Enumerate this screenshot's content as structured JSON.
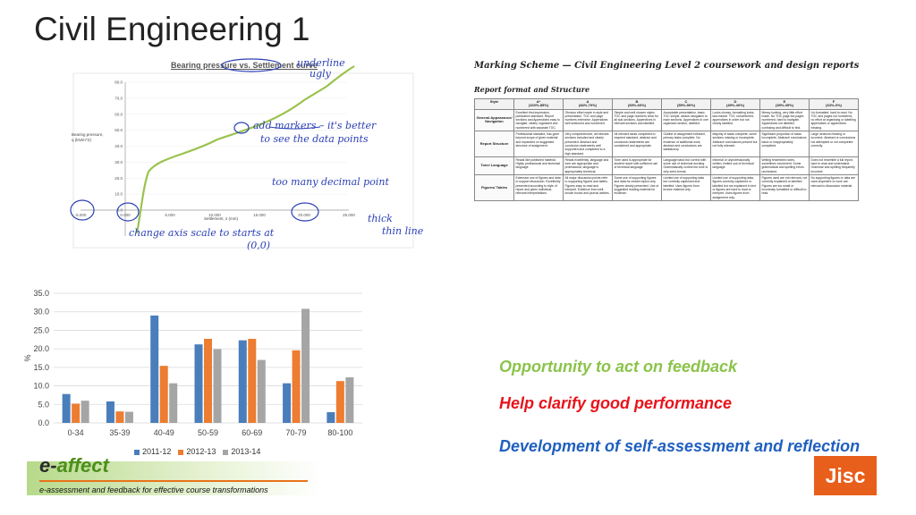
{
  "slide": {
    "title": "Civil Engineering 1"
  },
  "line_chart": {
    "title": "Bearing pressure vs. Settlement curve",
    "ylabel_1": "Bearing pressure,",
    "ylabel_2": "q (kN/m^2)",
    "xlabel": "Settlement, s (mm)",
    "y_ticks": [
      "80.0",
      "70.0",
      "60.0",
      "50.0",
      "40.0",
      "30.0",
      "20.0",
      "10.0",
      "0.0"
    ],
    "x_ticks": [
      "-5.000",
      "0.000",
      "5.000",
      "10.000",
      "15.000",
      "20.000",
      "25.000"
    ],
    "annotations": {
      "underline_1": "underline",
      "underline_2": "ugly",
      "marker_1": "add markers – it's better",
      "marker_2": "to see the data points",
      "decimal": "too many decimal point",
      "thick_1": "thick",
      "thick_2": "thin line",
      "scale_1": "change axis scale to starts at",
      "scale_2": "(0,0)"
    }
  },
  "chart_data": {
    "type": "bar",
    "categories": [
      "0-34",
      "35-39",
      "40-49",
      "50-59",
      "60-69",
      "70-79",
      "80-100"
    ],
    "series": [
      {
        "name": "2011-12",
        "values": [
          7.8,
          5.8,
          29.0,
          21.2,
          22.3,
          10.7,
          2.9
        ],
        "color": "#4a7ebb"
      },
      {
        "name": "2012-13",
        "values": [
          5.2,
          3.1,
          15.4,
          22.7,
          22.7,
          19.6,
          11.3
        ],
        "color": "#ed7d31"
      },
      {
        "name": "2013-14",
        "values": [
          6.0,
          3.0,
          10.7,
          19.9,
          17.0,
          30.8,
          12.3
        ],
        "color": "#a5a5a5"
      }
    ],
    "ylabel": "%",
    "y_ticks": [
      "35.0",
      "30.0",
      "25.0",
      "20.0",
      "15.0",
      "10.0",
      "5.0",
      "0.0"
    ],
    "ylim": [
      0,
      35
    ],
    "grid": true,
    "legend": "bottom"
  },
  "marking_scheme": {
    "title": "Marking Scheme — Civil Engineering Level 2 coursework and design reports",
    "subtitle": "Report format and Structure",
    "columns": [
      {
        "grade": "Style",
        "range": ""
      },
      {
        "grade": "A*",
        "range": "(100%-85%)"
      },
      {
        "grade": "A",
        "range": "(84%-70%)"
      },
      {
        "grade": "B",
        "range": "(69%-60%)"
      },
      {
        "grade": "C",
        "range": "(59%-50%)"
      },
      {
        "grade": "D",
        "range": "(49%-40%)"
      },
      {
        "grade": "E",
        "range": "(39%-35%)"
      },
      {
        "grade": "F",
        "range": "(34%-0%)"
      }
    ],
    "rows": [
      {
        "head": "General Appearance/ Navigation",
        "cells": [
          "Excellent first impression, publication standard. Report sections and Appendices easy to navigate, clearly organised and numbered with separate TOC.",
          "Obvious effort made in style and presentation. TOC and page numbers extensive. Appendices well sectioned and numbered.",
          "Simple and well chosen styles. TOC and page numbers clear for all sub-sections. Appendices in relevant sections and labelled.",
          "Acceptable presentation, basic. TOC simple, allows navigation to main sections. Appendices in one organised section, labelled.",
          "Looks clumsy, formatting looks last-minute. TOC unnumbered, appendices in order but not clearly labelled.",
          "Messy looking, very little effort made. No TOC page but pages numbered, hard to navigate. Appendices not labelled, confusing and difficult to find.",
          "Un-formatted, hard to read. No TOC and pages not numbered, no effort at organising or labelling appendices or appendices missing."
        ]
      },
      {
        "head": "Report Structure",
        "cells": [
          "Professional standard, has gone beyond scope of given material and expanded on suggested structure of assignment.",
          "Very comprehensive, all relevant sections included and clearly presented. Abstract and conclusion statements well supported and completed to a high standard.",
          "All relevant tasks completed to required standard, abstract and conclusion statements are considered and appropriate.",
          "Outline of assignment followed, primary tasks complete. No evidence of additional work, abstract and conclusions are satisfactory.",
          "Majority of tasks complete, some sections missing or incomplete. Abstract/ conclusions present but not fully relevant.",
          "Significant proportion of tasks incomplete. Abstract/ conclusions basic or inappropriately completed.",
          "Large sections missing or incorrect. Abstract or conclusions not attempted or not completed correctly."
        ]
      },
      {
        "head": "Tone/ Language",
        "cells": [
          "Reads like published material. Highly professional and technical language.",
          "Reads excellently, language and tone are appropriate and professional, language is appropriately technical.",
          "Tone used is appropriate for student report with sufficient use of technical language.",
          "Language basic but correct with some use of technical wording. Grammatically correct but tone is only semi-formal.",
          "Informal or unprofessionally written, limited use of technical language.",
          "Writing resembles notes, sometimes incoherent. Some grammatical and spelling errors unchecked.",
          "Does not resemble a full report, hard to read and understand. Grammar and spelling frequently incorrect."
        ]
      },
      {
        "head": "Figures/ Tables",
        "cells": [
          "Extensive use of figures and data to support discussion. Excellently presented according to style of report and given individual, relevant interpretations.",
          "All major discussion points refer to supporting figures and tables. Figures easy to read and interpret. Evidence from well-known books and journal articles.",
          "Some use of supporting figures and data for certain topics only. Figures clearly presented. Use of suggested reading material for evidence.",
          "Limited use of supporting data but correctly captioned and labelled. Uses figures from lecture material only.",
          "Limited use of supporting data, figures correctly captioned or labelled but not explained in text or figures are hard to read or interpret. Uses figures from assignment only.",
          "Figures used are not relevant, not correctly explained or labelled. Figures are too small or incorrectly formatted or difficult to read.",
          "No supporting figures or data are used anywhere or none are relevant to discussion material."
        ]
      }
    ]
  },
  "statements": {
    "s1": "Opportunity to act on feedback",
    "s2": "Help clarify good performance",
    "s3": "Development of self-assessment and reflection"
  },
  "logos": {
    "e_letter": "e-",
    "affect": "affect",
    "tagline": "e-assessment and feedback for effective course transformations",
    "jisc": "Jisc"
  }
}
